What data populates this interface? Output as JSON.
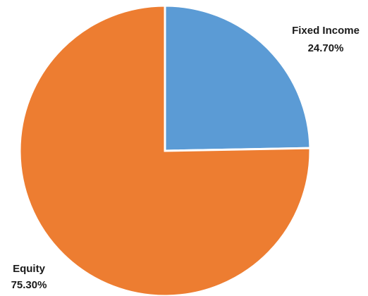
{
  "chart_data": {
    "type": "pie",
    "title": "",
    "categories": [
      "Fixed Income",
      "Equity"
    ],
    "values": [
      24.7,
      75.3
    ],
    "value_labels": [
      "24.70%",
      "75.30%"
    ],
    "colors": [
      "#5b9bd5",
      "#ed7d31"
    ],
    "start_angle_deg": 0,
    "direction": "clockwise",
    "slice_border_color": "#ffffff",
    "legend": "none",
    "labels": "outside"
  }
}
